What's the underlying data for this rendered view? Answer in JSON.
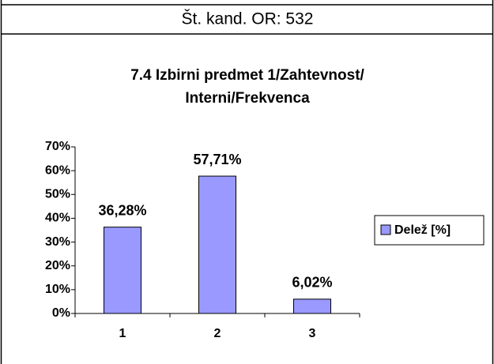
{
  "header": "Št. kand. OR: 532",
  "chart_data": {
    "type": "bar",
    "title": [
      "7.4 Izbirni predmet 1/Zahtevnost/",
      "Interni/Frekvenca"
    ],
    "categories": [
      "1",
      "2",
      "3"
    ],
    "series": [
      {
        "name": "Delež [%]",
        "color": "#9999ff",
        "values": [
          36.28,
          57.71,
          6.02
        ],
        "value_labels": [
          "36,28%",
          "57,71%",
          "6,02%"
        ]
      }
    ],
    "ylim": [
      0,
      70
    ],
    "yticks": [
      {
        "value": 0,
        "label": "0%"
      },
      {
        "value": 10,
        "label": "10%"
      },
      {
        "value": 20,
        "label": "20%"
      },
      {
        "value": 30,
        "label": "30%"
      },
      {
        "value": 40,
        "label": "40%"
      },
      {
        "value": 50,
        "label": "50%"
      },
      {
        "value": 60,
        "label": "60%"
      },
      {
        "value": 70,
        "label": "70%"
      }
    ],
    "legend": "right"
  }
}
